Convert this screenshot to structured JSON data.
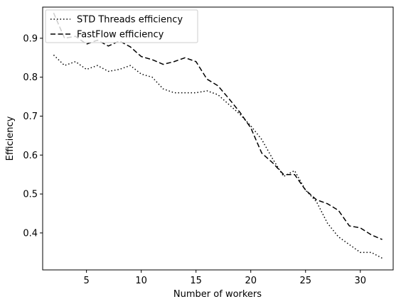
{
  "chart_data": {
    "type": "line",
    "title": "",
    "xlabel": "Number of workers",
    "ylabel": "Efficiency",
    "xlim": [
      1,
      33
    ],
    "ylim": [
      0.305,
      0.98
    ],
    "xticks": [
      5,
      10,
      15,
      20,
      25,
      30
    ],
    "yticks": [
      0.4,
      0.5,
      0.6,
      0.7,
      0.8,
      0.9
    ],
    "grid": false,
    "legend_position": "top-left",
    "series": [
      {
        "name": "STD Threads efficiency",
        "style": "dotted",
        "color": "#000000",
        "x": [
          2,
          3,
          4,
          5,
          6,
          7,
          8,
          9,
          10,
          11,
          12,
          13,
          14,
          15,
          16,
          17,
          18,
          19,
          20,
          21,
          22,
          23,
          24,
          25,
          26,
          27,
          28,
          29,
          30,
          31,
          32
        ],
        "y": [
          0.857,
          0.83,
          0.84,
          0.82,
          0.83,
          0.815,
          0.82,
          0.83,
          0.808,
          0.8,
          0.77,
          0.76,
          0.76,
          0.76,
          0.765,
          0.755,
          0.73,
          0.705,
          0.675,
          0.64,
          0.59,
          0.545,
          0.56,
          0.51,
          0.48,
          0.425,
          0.39,
          0.37,
          0.35,
          0.35,
          0.335
        ]
      },
      {
        "name": "FastFlow efficiency",
        "style": "dashed",
        "color": "#000000",
        "x": [
          2,
          3,
          4,
          5,
          6,
          7,
          8,
          9,
          10,
          11,
          12,
          13,
          14,
          15,
          16,
          17,
          18,
          19,
          20,
          21,
          22,
          23,
          24,
          25,
          26,
          27,
          28,
          29,
          30,
          31,
          32
        ],
        "y": [
          0.965,
          0.9,
          0.905,
          0.885,
          0.895,
          0.88,
          0.893,
          0.878,
          0.853,
          0.845,
          0.833,
          0.84,
          0.85,
          0.84,
          0.795,
          0.778,
          0.745,
          0.71,
          0.67,
          0.605,
          0.58,
          0.55,
          0.55,
          0.51,
          0.485,
          0.475,
          0.458,
          0.418,
          0.413,
          0.395,
          0.383
        ]
      }
    ]
  }
}
